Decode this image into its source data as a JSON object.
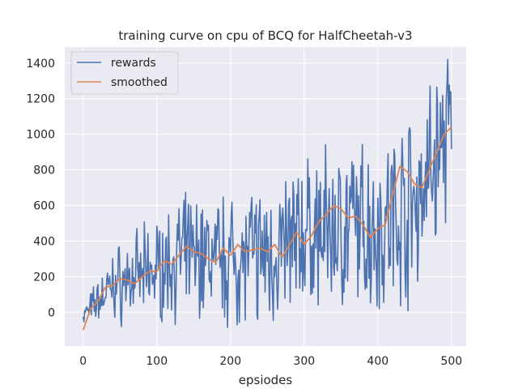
{
  "chart_data": {
    "type": "line",
    "title": "training curve on cpu of BCQ for HalfCheetah-v3",
    "xlabel": "epsiodes",
    "ylabel": "",
    "xlim": [
      -25,
      520
    ],
    "ylim": [
      -190,
      1490
    ],
    "xticks": [
      0,
      100,
      200,
      300,
      400,
      500
    ],
    "yticks": [
      0,
      200,
      400,
      600,
      800,
      1000,
      1200,
      1400
    ],
    "grid": true,
    "legend_position": "upper-left",
    "background_color": "#eaeaf2",
    "grid_color": "#ffffff",
    "series_rewards_seed": 7,
    "series": [
      {
        "name": "rewards",
        "color": "#4c72b0",
        "generator": {
          "n": 501,
          "trend_points": [
            [
              0,
              -20
            ],
            [
              40,
              150
            ],
            [
              80,
              200
            ],
            [
              140,
              320
            ],
            [
              200,
              300
            ],
            [
              260,
              330
            ],
            [
              300,
              430
            ],
            [
              350,
              470
            ],
            [
              400,
              480
            ],
            [
              450,
              620
            ],
            [
              500,
              1050
            ]
          ],
          "amplitude_points": [
            [
              0,
              60
            ],
            [
              50,
              220
            ],
            [
              150,
              330
            ],
            [
              300,
              420
            ],
            [
              400,
              480
            ],
            [
              450,
              520
            ],
            [
              500,
              480
            ]
          ],
          "min": -120,
          "max": 1420
        }
      },
      {
        "name": "smoothed",
        "color": "#dd8452",
        "anchors": [
          [
            0,
            -100
          ],
          [
            10,
            20
          ],
          [
            20,
            60
          ],
          [
            30,
            140
          ],
          [
            40,
            150
          ],
          [
            50,
            190
          ],
          [
            60,
            180
          ],
          [
            70,
            160
          ],
          [
            80,
            200
          ],
          [
            90,
            230
          ],
          [
            100,
            230
          ],
          [
            110,
            290
          ],
          [
            120,
            270
          ],
          [
            130,
            320
          ],
          [
            140,
            370
          ],
          [
            150,
            340
          ],
          [
            160,
            330
          ],
          [
            170,
            300
          ],
          [
            180,
            280
          ],
          [
            190,
            360
          ],
          [
            200,
            320
          ],
          [
            210,
            380
          ],
          [
            220,
            340
          ],
          [
            230,
            350
          ],
          [
            240,
            360
          ],
          [
            250,
            340
          ],
          [
            260,
            380
          ],
          [
            270,
            310
          ],
          [
            280,
            380
          ],
          [
            290,
            450
          ],
          [
            300,
            380
          ],
          [
            310,
            430
          ],
          [
            320,
            510
          ],
          [
            330,
            550
          ],
          [
            340,
            600
          ],
          [
            350,
            580
          ],
          [
            360,
            530
          ],
          [
            370,
            540
          ],
          [
            380,
            490
          ],
          [
            390,
            420
          ],
          [
            400,
            470
          ],
          [
            410,
            490
          ],
          [
            420,
            660
          ],
          [
            430,
            820
          ],
          [
            440,
            790
          ],
          [
            450,
            720
          ],
          [
            460,
            700
          ],
          [
            470,
            800
          ],
          [
            480,
            900
          ],
          [
            490,
            1000
          ],
          [
            500,
            1040
          ]
        ]
      }
    ]
  }
}
